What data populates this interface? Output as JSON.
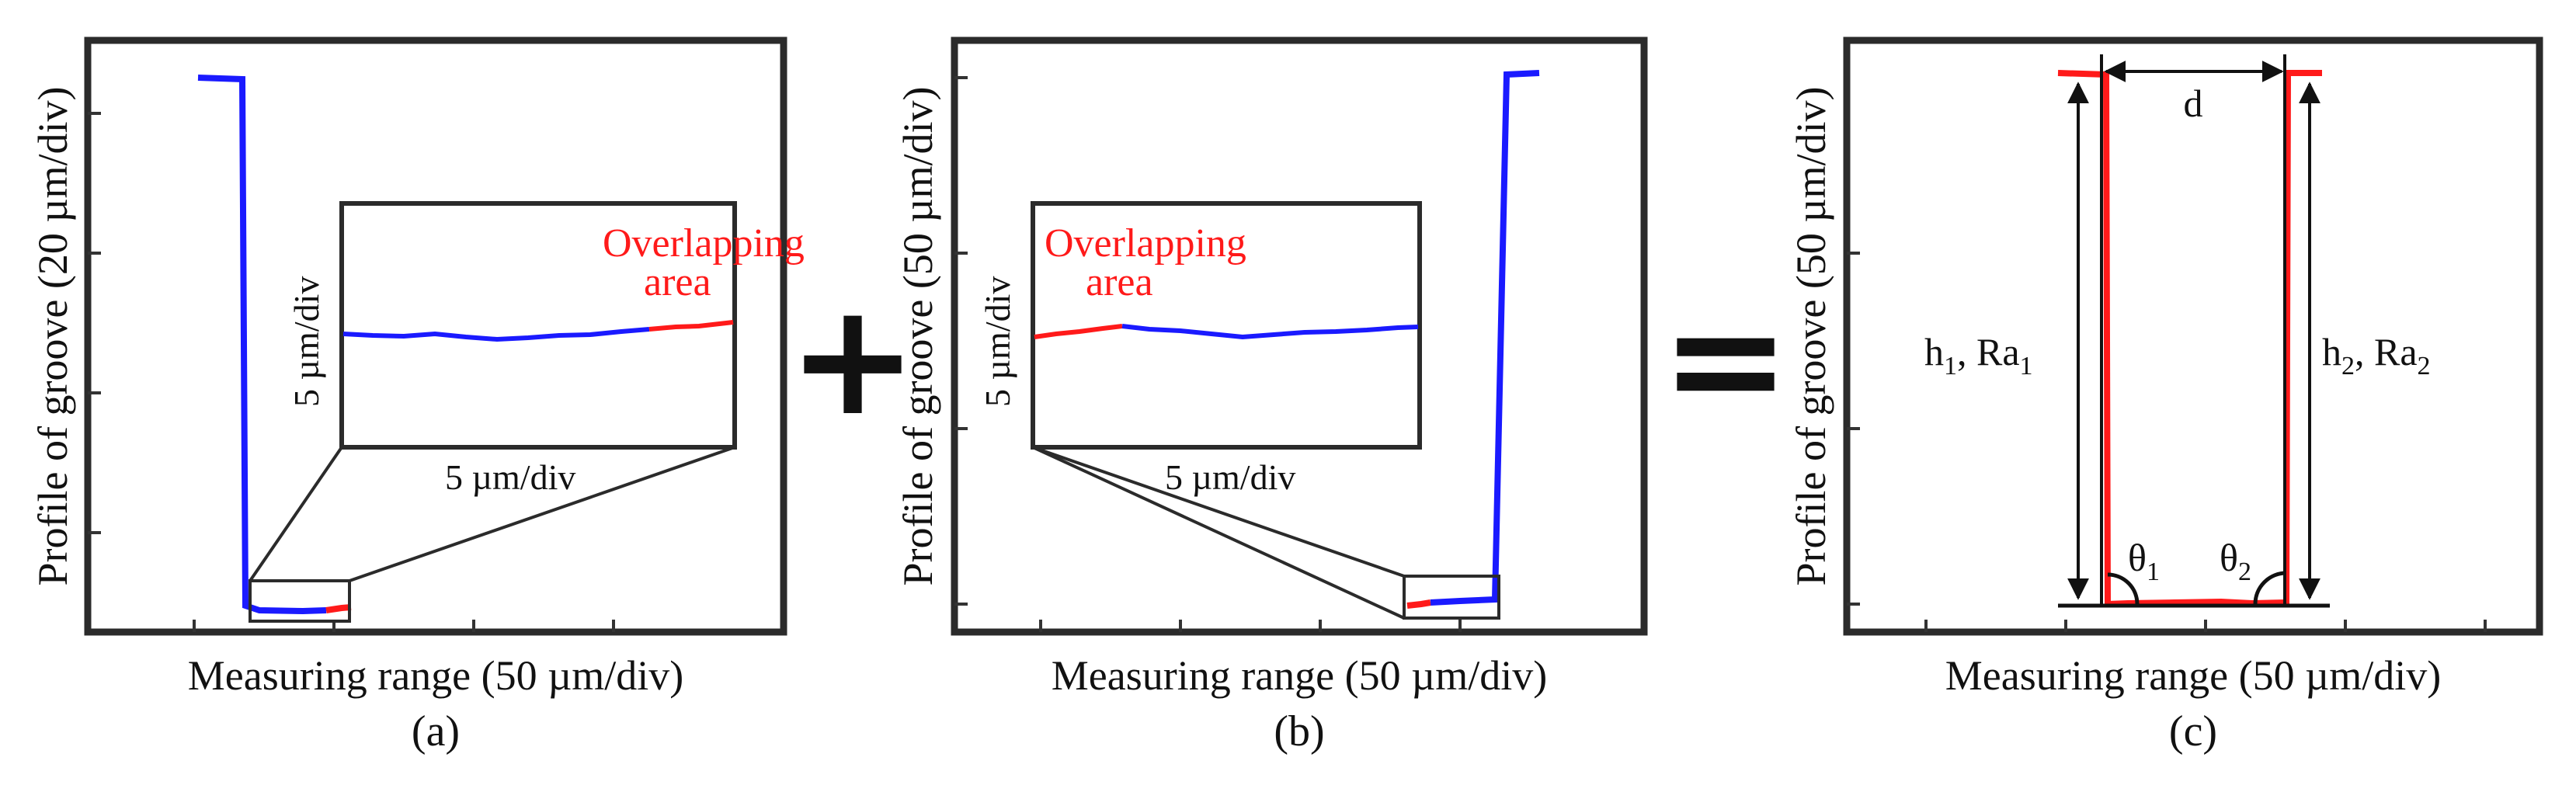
{
  "panel_a": {
    "x_label": "Measuring range (50 µm/div)",
    "y_label": "Profile of groove (20 µm/div)",
    "caption": "(a)",
    "inset": {
      "overlap_label_line1": "Overlapping",
      "overlap_label_line2": "area",
      "y_scale": "5 µm/div",
      "x_scale": "5 µm/div"
    }
  },
  "operator_plus": "+",
  "panel_b": {
    "x_label": "Measuring range (50 µm/div)",
    "y_label": "Profile of groove (50 µm/div)",
    "caption": "(b)",
    "inset": {
      "overlap_label_line1": "Overlapping",
      "overlap_label_line2": "area",
      "y_scale": "5 µm/div",
      "x_scale": "5 µm/div"
    }
  },
  "operator_equals": "=",
  "panel_c": {
    "x_label": "Measuring range (50 µm/div)",
    "y_label": "Profile of groove (50 µm/div)",
    "caption": "(c)",
    "width_label": "d",
    "left_height": {
      "h": "h",
      "h_sub": "1",
      "sep": ", Ra",
      "ra_sub": "1"
    },
    "right_height": {
      "h": "h",
      "h_sub": "2",
      "sep": ", Ra",
      "ra_sub": "2"
    },
    "angle_left": {
      "symbol": "θ",
      "sub": "1"
    },
    "angle_right": {
      "symbol": "θ",
      "sub": "2"
    }
  },
  "colors": {
    "measured_profile": "#1a1aff",
    "overlap_profile": "#ff1a1a",
    "frame": "#2b2b2b"
  }
}
